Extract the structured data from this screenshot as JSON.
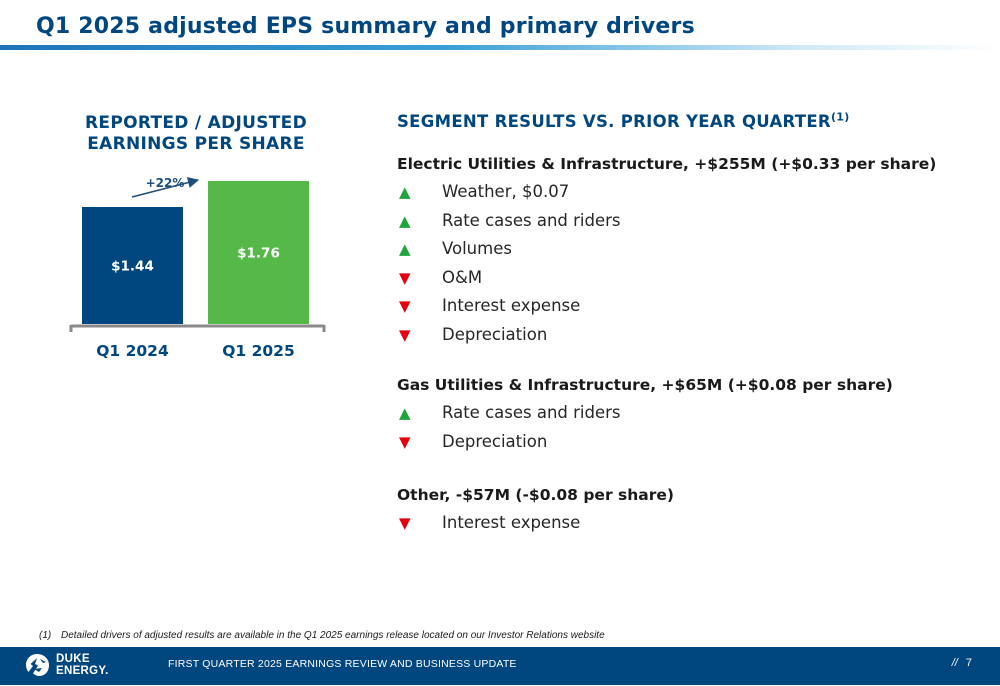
{
  "header": {
    "title": "Q1 2025 adjusted EPS summary and primary drivers"
  },
  "left_panel": {
    "heading_line1": "REPORTED / ADJUSTED",
    "heading_line2": "EARNINGS PER SHARE"
  },
  "chart_data": {
    "type": "bar",
    "categories": [
      "Q1 2024",
      "Q1 2025"
    ],
    "values": [
      1.44,
      1.76
    ],
    "data_labels": [
      "$1.44",
      "$1.76"
    ],
    "bar_colors": [
      "#00467f",
      "#55b848"
    ],
    "annotation": "+22%",
    "ylim": [
      0,
      1.76
    ],
    "title": "",
    "xlabel": "",
    "ylabel": ""
  },
  "right_panel": {
    "heading": "SEGMENT RESULTS VS. PRIOR YEAR QUARTER",
    "heading_sup": "(1)",
    "segments": [
      {
        "title": "Electric Utilities & Infrastructure, +$255M (+$0.33 per share)",
        "drivers": [
          {
            "direction": "up",
            "label": "Weather, $0.07"
          },
          {
            "direction": "up",
            "label": "Rate cases and riders"
          },
          {
            "direction": "up",
            "label": "Volumes"
          },
          {
            "direction": "down",
            "label": "O&M"
          },
          {
            "direction": "down",
            "label": "Interest expense"
          },
          {
            "direction": "down",
            "label": "Depreciation"
          }
        ]
      },
      {
        "title": "Gas Utilities & Infrastructure, +$65M (+$0.08 per share)",
        "drivers": [
          {
            "direction": "up",
            "label": "Rate cases and riders"
          },
          {
            "direction": "down",
            "label": "Depreciation"
          }
        ]
      },
      {
        "title": "Other, -$57M (-$0.08 per share)",
        "drivers": [
          {
            "direction": "down",
            "label": "Interest expense"
          }
        ]
      }
    ]
  },
  "arrows": {
    "up_glyph": "▲",
    "down_glyph": "▼",
    "up_color": "#1fa33c",
    "down_color": "#e3000f"
  },
  "footnote": {
    "number": "(1)",
    "text": "Detailed drivers of adjusted results are available in the Q1 2025 earnings release located on our Investor Relations website"
  },
  "footer": {
    "logo_line1": "DUKE",
    "logo_line2": "ENERGY.",
    "text": "FIRST QUARTER 2025 EARNINGS REVIEW AND BUSINESS UPDATE",
    "separator": "//",
    "page_number": "7"
  }
}
